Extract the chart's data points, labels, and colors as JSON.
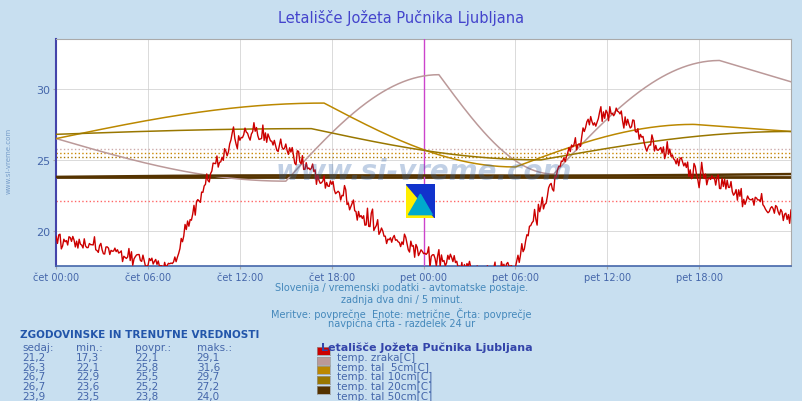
{
  "title": "Letališče Jožeta Pučnika Ljubljana",
  "title_color": "#4444cc",
  "bg_color": "#c8dff0",
  "plot_bg_color": "#ffffff",
  "grid_color": "#cccccc",
  "xlabel_color": "#4466aa",
  "ylabel_color": "#4466aa",
  "x_ticks_labels": [
    "čet 00:00",
    "čet 06:00",
    "čet 12:00",
    "čet 18:00",
    "pet 00:00",
    "pet 06:00",
    "pet 12:00",
    "pet 18:00"
  ],
  "x_ticks_pos": [
    0,
    72,
    144,
    216,
    288,
    360,
    432,
    504
  ],
  "y_ticks": [
    20,
    25,
    30
  ],
  "ylim": [
    17.5,
    33.5
  ],
  "xlim": [
    0,
    576
  ],
  "subtitle1": "Slovenija / vremenski podatki - avtomatske postaje.",
  "subtitle2": "zadnja dva dni / 5 minut.",
  "subtitle3": "Meritve: povprečne  Enote: metrične  Črta: povprečje",
  "subtitle4": "navpična črta - razdelek 24 ur",
  "subtitle_color": "#4488bb",
  "watermark": "www.si-vreme.com",
  "watermark_color": "#3366aa",
  "series_colors": {
    "air_temp": "#cc0000",
    "soil_5cm": "#bb9999",
    "soil_10cm": "#bb8800",
    "soil_20cm": "#997700",
    "soil_50cm": "#553300"
  },
  "avg_lines": [
    {
      "y": 22.1,
      "color": "#ff6666",
      "style": "dotted",
      "lw": 1.0
    },
    {
      "y": 25.8,
      "color": "#ccaaaa",
      "style": "dotted",
      "lw": 1.0
    },
    {
      "y": 25.5,
      "color": "#cc8800",
      "style": "dotted",
      "lw": 1.0
    },
    {
      "y": 25.2,
      "color": "#aa7700",
      "style": "dotted",
      "lw": 1.0
    },
    {
      "y": 23.8,
      "color": "#553300",
      "style": "solid",
      "lw": 2.0
    }
  ],
  "vline_x": 288,
  "vline_color": "#cc44cc",
  "table_header": "ZGODOVINSKE IN TRENUTNE VREDNOSTI",
  "table_header_color": "#2255aa",
  "table_cols": [
    "sedaj:",
    "min.:",
    "povpr.:",
    "maks.:"
  ],
  "table_rows": [
    [
      "21,2",
      "17,3",
      "22,1",
      "29,1"
    ],
    [
      "26,3",
      "22,1",
      "25,8",
      "31,6"
    ],
    [
      "26,7",
      "22,9",
      "25,5",
      "29,7"
    ],
    [
      "26,7",
      "23,6",
      "25,2",
      "27,2"
    ],
    [
      "23,9",
      "23,5",
      "23,8",
      "24,0"
    ]
  ],
  "table_labels": [
    "temp. zraka[C]",
    "temp. tal  5cm[C]",
    "temp. tal 10cm[C]",
    "temp. tal 20cm[C]",
    "temp. tal 50cm[C]"
  ],
  "table_label_colors": [
    "#cc0000",
    "#bb9999",
    "#bb8800",
    "#997700",
    "#553300"
  ],
  "table_color": "#4466aa",
  "station_label": "Letališče Jožeta Pučnika Ljubljana",
  "station_label_color": "#3344aa"
}
